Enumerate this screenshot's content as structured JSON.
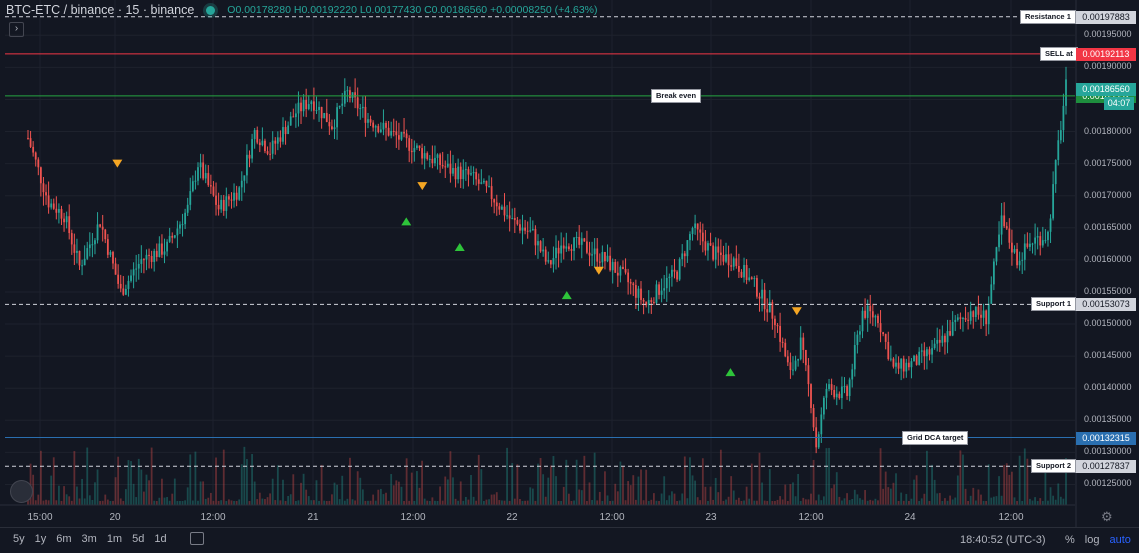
{
  "header": {
    "symbol": "BTC-ETC / binance · 15 · binance",
    "o": "O0.00178280",
    "h": "H0.00192220",
    "l": "L0.00177430",
    "c": "C0.00186560",
    "chg": "+0.00008250 (+4.63%)"
  },
  "timeframes": [
    "5y",
    "1y",
    "6m",
    "3m",
    "1m",
    "5d",
    "1d"
  ],
  "footer": {
    "clock": "18:40:52 (UTC-3)",
    "percent": "%",
    "log": "log",
    "auto": "auto"
  },
  "levels": [
    {
      "name": "resistance",
      "label": "Resistance 1",
      "price": 0.00197883,
      "tag": "0.00197883",
      "style": "dashed",
      "color": "#d1d4dc"
    },
    {
      "name": "sell",
      "label": "SELL at",
      "price": 0.00192113,
      "tag": "0.00192113",
      "style": "solid",
      "color": "#f23645"
    },
    {
      "name": "break-even",
      "label": "Break even",
      "price": 0.00185552,
      "tag": "0.00185552",
      "style": "solid",
      "color": "#26a641"
    },
    {
      "name": "support1",
      "label": "Support 1",
      "price": 0.00153073,
      "tag": "0.00153073",
      "style": "dashed",
      "color": "#d1d4dc"
    },
    {
      "name": "grid-dca",
      "label": "Grid DCA target",
      "price": 0.00132315,
      "tag": "0.00132315",
      "style": "solid",
      "color": "#2a6fb0"
    },
    {
      "name": "support2",
      "label": "Support 2",
      "price": 0.00127837,
      "tag": "0.00127837",
      "style": "dashed",
      "color": "#d1d4dc"
    }
  ],
  "last_price": {
    "tag": "0.00186560",
    "countdown": "04:07",
    "price": 0.0018656
  },
  "colors": {
    "up": "#26a69a",
    "down": "#ef5350",
    "bg": "#131722",
    "grid": "#1e222d",
    "buy": "#2ec43a",
    "sell": "#f5a623"
  },
  "chart_data": {
    "type": "candlestick",
    "y_ticks": [
      "0.00125000",
      "0.00130000",
      "0.00135000",
      "0.00140000",
      "0.00145000",
      "0.00150000",
      "0.00155000",
      "0.00160000",
      "0.00165000",
      "0.00170000",
      "0.00175000",
      "0.00180000",
      "0.00185000",
      "0.00190000",
      "0.00195000"
    ],
    "x_ticks": [
      "15:00",
      "20",
      "12:00",
      "21",
      "12:00",
      "22",
      "12:00",
      "23",
      "12:00",
      "24",
      "12:00"
    ],
    "ylim": [
      0.001218,
      0.002005
    ],
    "path": [
      [
        0,
        0.00179
      ],
      [
        8,
        0.00169
      ],
      [
        14,
        0.00167
      ],
      [
        20,
        0.00159
      ],
      [
        28,
        0.00166
      ],
      [
        36,
        0.00155
      ],
      [
        44,
        0.0016
      ],
      [
        54,
        0.00162
      ],
      [
        62,
        0.00168
      ],
      [
        66,
        0.00175
      ],
      [
        74,
        0.00168
      ],
      [
        82,
        0.00171
      ],
      [
        88,
        0.0018
      ],
      [
        94,
        0.00177
      ],
      [
        104,
        0.00183
      ],
      [
        110,
        0.00185
      ],
      [
        118,
        0.00181
      ],
      [
        124,
        0.00186
      ],
      [
        132,
        0.00182
      ],
      [
        140,
        0.0018
      ],
      [
        148,
        0.00178
      ],
      [
        156,
        0.00176
      ],
      [
        164,
        0.00174
      ],
      [
        172,
        0.00173
      ],
      [
        180,
        0.0017
      ],
      [
        188,
        0.00166
      ],
      [
        196,
        0.00164
      ],
      [
        202,
        0.00159
      ],
      [
        208,
        0.00163
      ],
      [
        216,
        0.00162
      ],
      [
        224,
        0.0016
      ],
      [
        232,
        0.00157
      ],
      [
        240,
        0.00153
      ],
      [
        246,
        0.00156
      ],
      [
        252,
        0.00158
      ],
      [
        258,
        0.00165
      ],
      [
        266,
        0.00161
      ],
      [
        274,
        0.0016
      ],
      [
        282,
        0.00156
      ],
      [
        290,
        0.00151
      ],
      [
        296,
        0.00142
      ],
      [
        300,
        0.00147
      ],
      [
        304,
        0.00138
      ],
      [
        306,
        0.00131
      ],
      [
        310,
        0.0014
      ],
      [
        318,
        0.00139
      ],
      [
        324,
        0.00152
      ],
      [
        330,
        0.00151
      ],
      [
        336,
        0.00143
      ],
      [
        344,
        0.00144
      ],
      [
        352,
        0.00146
      ],
      [
        360,
        0.0015
      ],
      [
        366,
        0.00152
      ],
      [
        372,
        0.00151
      ],
      [
        378,
        0.00166
      ],
      [
        384,
        0.0016
      ],
      [
        390,
        0.00163
      ],
      [
        396,
        0.00164
      ],
      [
        400,
        0.00178
      ],
      [
        403,
        0.00187
      ]
    ],
    "markers": [
      {
        "kind": "sell",
        "x": 0.105,
        "price": 0.00175
      },
      {
        "kind": "buy",
        "x": 0.375,
        "price": 0.00166
      },
      {
        "kind": "sell",
        "x": 0.39,
        "price": 0.001715
      },
      {
        "kind": "buy",
        "x": 0.425,
        "price": 0.00162
      },
      {
        "kind": "buy",
        "x": 0.525,
        "price": 0.001545
      },
      {
        "kind": "sell",
        "x": 0.555,
        "price": 0.001583
      },
      {
        "kind": "buy",
        "x": 0.678,
        "price": 0.001425
      },
      {
        "kind": "sell",
        "x": 0.74,
        "price": 0.00152
      }
    ]
  }
}
